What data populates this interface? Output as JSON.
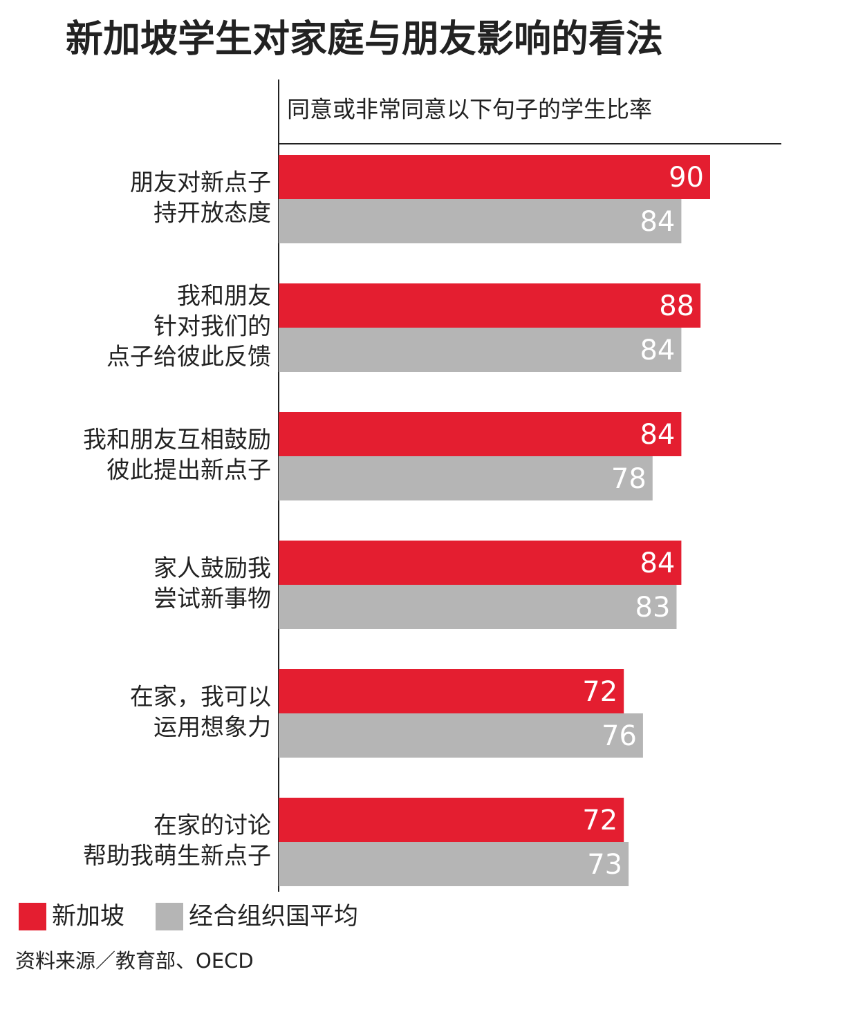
{
  "chart_data": {
    "type": "hbar",
    "title": "新加坡学生对家庭与朋友影响的看法",
    "subtitle": "同意或非常同意以下句子的学生比率",
    "categories": [
      [
        "朋友对新点子",
        "持开放态度"
      ],
      [
        "我和朋友",
        "针对我们的",
        "点子给彼此反馈"
      ],
      [
        "我和朋友互相鼓励",
        "彼此提出新点子"
      ],
      [
        "家人鼓励我",
        "尝试新事物"
      ],
      [
        "在家，我可以",
        "运用想象力"
      ],
      [
        "在家的讨论",
        "帮助我萌生新点子"
      ]
    ],
    "series": [
      {
        "name": "新加坡",
        "color": "#e41e30",
        "values": [
          90,
          88,
          84,
          84,
          72,
          72
        ]
      },
      {
        "name": "经合组织国平均",
        "color": "#b5b5b5",
        "values": [
          84,
          84,
          78,
          83,
          76,
          73
        ]
      }
    ],
    "xlim": [
      0,
      105
    ],
    "source": "资料来源／教育部、OECD"
  }
}
